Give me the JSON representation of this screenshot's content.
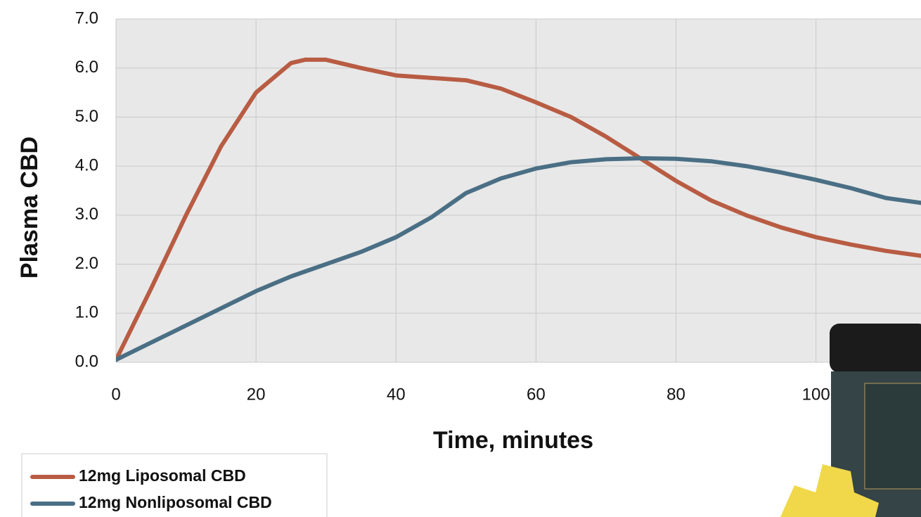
{
  "chart_data": {
    "type": "line",
    "x_label": "Time, minutes",
    "y_label": "Plasma CBD",
    "x": [
      0,
      5,
      10,
      15,
      20,
      25,
      27,
      30,
      35,
      40,
      45,
      50,
      55,
      60,
      65,
      70,
      75,
      80,
      85,
      90,
      95,
      100,
      105,
      110,
      115
    ],
    "series": [
      {
        "name": "12mg Liposomal CBD",
        "color": "#b85c43",
        "values": [
          0.05,
          1.5,
          3.0,
          4.4,
          5.5,
          6.1,
          6.17,
          6.17,
          6.0,
          5.85,
          5.8,
          5.75,
          5.58,
          5.3,
          5.0,
          4.6,
          4.15,
          3.7,
          3.3,
          3.0,
          2.75,
          2.55,
          2.4,
          2.27,
          2.17
        ]
      },
      {
        "name": "12mg Nonliposomal CBD",
        "color": "#4a6f85",
        "values": [
          0.05,
          0.4,
          0.75,
          1.1,
          1.45,
          1.75,
          1.85,
          2.0,
          2.25,
          2.55,
          2.95,
          3.45,
          3.75,
          3.95,
          4.08,
          4.14,
          4.16,
          4.15,
          4.1,
          4.0,
          3.87,
          3.72,
          3.55,
          3.35,
          3.25
        ]
      }
    ],
    "xlim": [
      0,
      115
    ],
    "ylim": [
      0,
      7
    ],
    "xticks": [
      0,
      20,
      40,
      60,
      80,
      100
    ],
    "yticks": [
      {
        "value": 0,
        "label": "0.0"
      },
      {
        "value": 1,
        "label": "1.0"
      },
      {
        "value": 2,
        "label": "2.0"
      },
      {
        "value": 3,
        "label": "3.0"
      },
      {
        "value": 4,
        "label": "4.0"
      },
      {
        "value": 5,
        "label": "5.0"
      },
      {
        "value": 6,
        "label": "6.0"
      },
      {
        "value": 7,
        "label": "7.0"
      }
    ],
    "grid": true,
    "legend": "bottom-left"
  }
}
